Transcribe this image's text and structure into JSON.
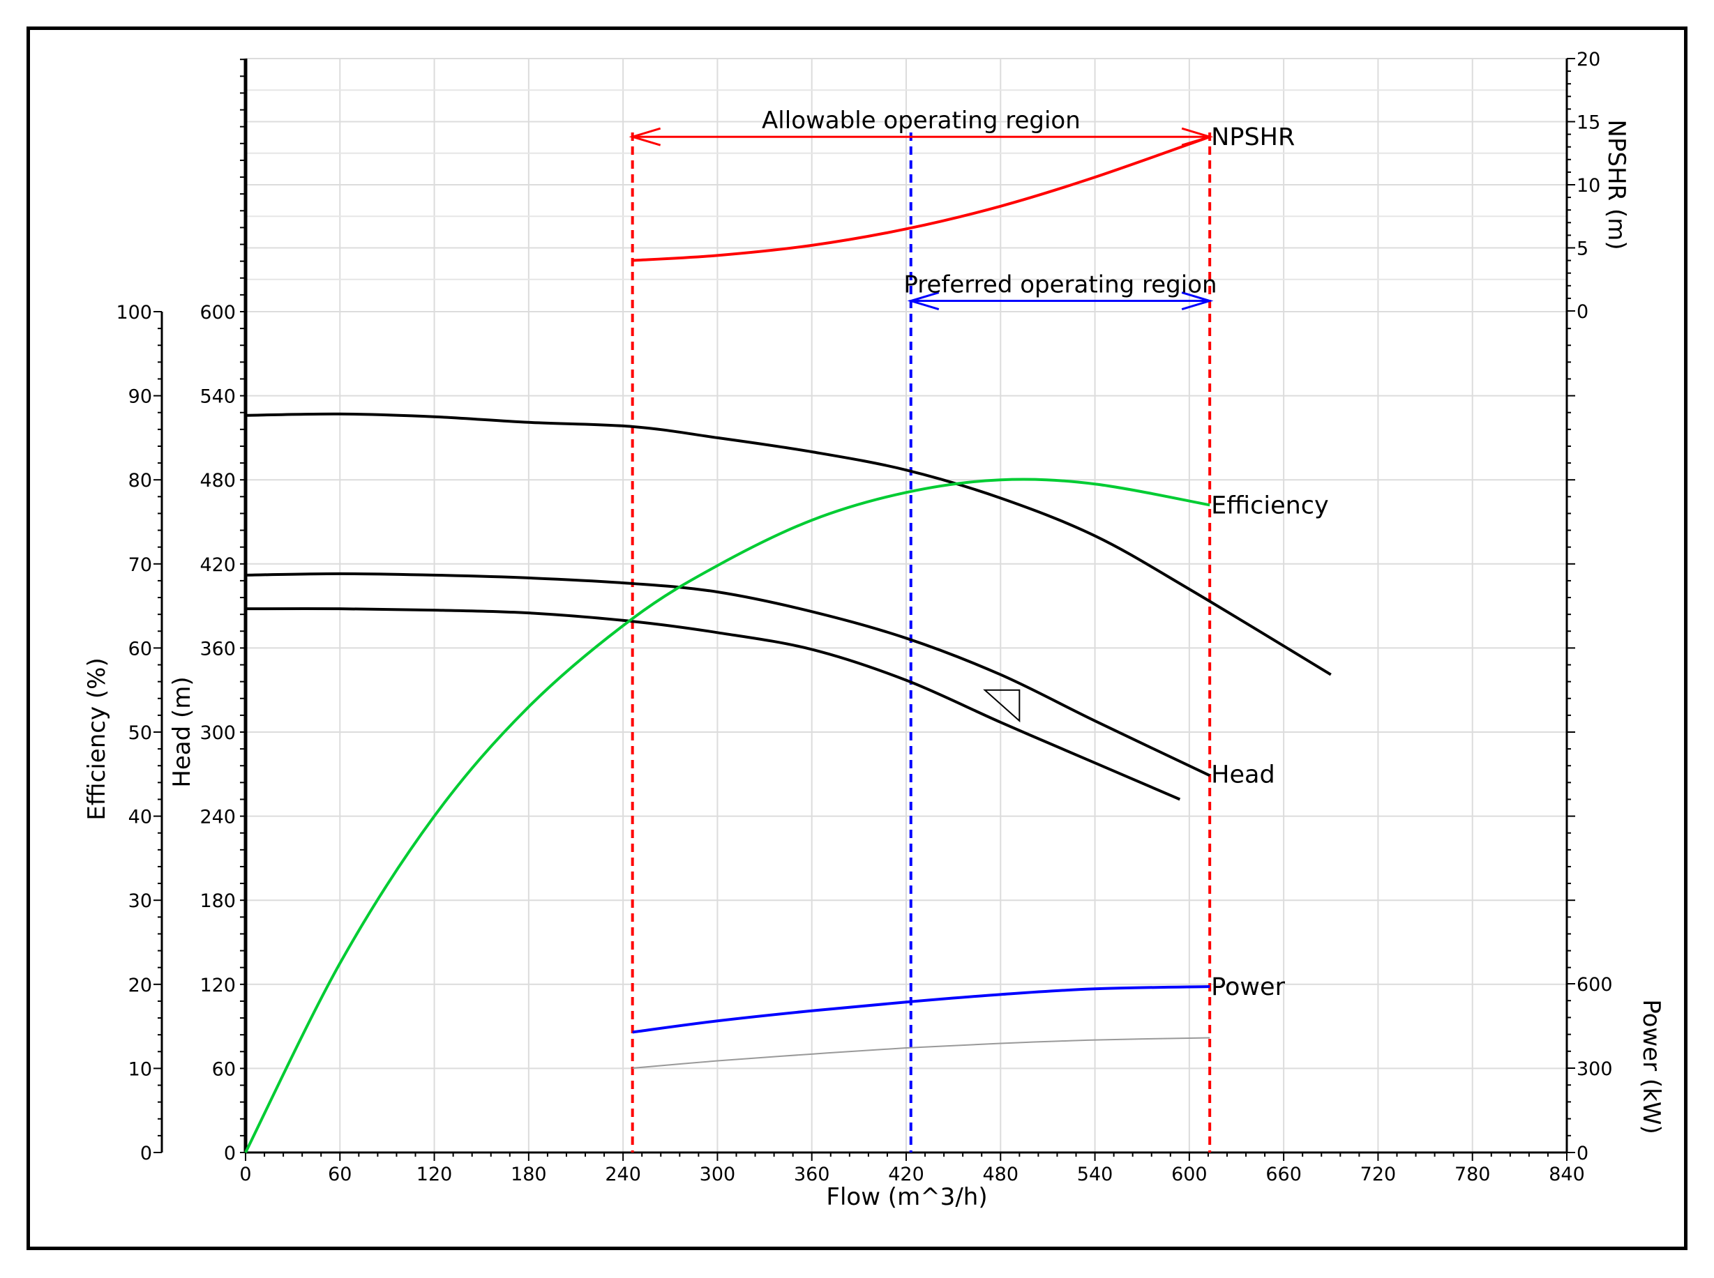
{
  "chart_data": {
    "type": "line",
    "xlabel": "Flow (m^3/h)",
    "xlim": [
      0,
      840
    ],
    "xticks": [
      0,
      60,
      120,
      180,
      240,
      300,
      360,
      420,
      480,
      540,
      600,
      660,
      720,
      780,
      840
    ],
    "axes": {
      "efficiency": {
        "label": "Efficiency (%)",
        "lim": [
          0,
          100
        ],
        "ticks": [
          0,
          10,
          20,
          30,
          40,
          50,
          60,
          70,
          80,
          90,
          100
        ]
      },
      "head": {
        "label": "Head (m)",
        "lim": [
          0,
          600
        ],
        "ticks": [
          0,
          60,
          120,
          180,
          240,
          300,
          360,
          420,
          480,
          540,
          600
        ]
      },
      "npshr": {
        "label": "NPSHR (m)",
        "lim": [
          0,
          20
        ],
        "ticks": [
          0,
          5,
          10,
          15,
          20
        ]
      },
      "power": {
        "label": "Power (kW)",
        "lim": [
          0,
          600
        ],
        "ticks": [
          0,
          300,
          600
        ]
      }
    },
    "grid": true,
    "series": [
      {
        "name": "Head",
        "axis": "head",
        "color": "#000000",
        "x": [
          0,
          60,
          120,
          180,
          246,
          300,
          360,
          420,
          480,
          540,
          600,
          690
        ],
        "y": [
          526,
          527,
          525,
          521,
          518,
          510,
          500,
          487,
          467,
          440,
          402,
          341
        ]
      },
      {
        "name": "",
        "axis": "head",
        "color": "#000000",
        "x": [
          0,
          60,
          120,
          180,
          246,
          300,
          360,
          420,
          480,
          540,
          613
        ],
        "y": [
          412,
          413,
          412,
          410,
          406,
          400,
          386,
          367,
          341,
          308,
          269
        ]
      },
      {
        "name": "",
        "axis": "head",
        "color": "#000000",
        "x": [
          0,
          60,
          120,
          180,
          246,
          300,
          360,
          420,
          480,
          540,
          594
        ],
        "y": [
          388,
          388,
          387,
          385,
          379,
          371,
          359,
          337,
          307,
          278,
          252
        ]
      },
      {
        "name": "Efficiency",
        "axis": "efficiency",
        "color": "#00cc33",
        "x": [
          0,
          60,
          120,
          180,
          246,
          300,
          360,
          420,
          480,
          540,
          613
        ],
        "y": [
          0,
          22.5,
          40,
          53,
          63.5,
          69.8,
          75.2,
          78.5,
          80,
          79.5,
          77
        ]
      },
      {
        "name": "NPSHR",
        "axis": "npshr",
        "color": "#ff0000",
        "x": [
          246,
          300,
          360,
          420,
          480,
          540,
          613
        ],
        "y": [
          4,
          4.4,
          5.2,
          6.5,
          8.3,
          10.6,
          13.8
        ]
      },
      {
        "name": "Power",
        "axis": "power",
        "color": "#0000ff",
        "x": [
          246,
          300,
          360,
          420,
          480,
          540,
          613
        ],
        "y": [
          428,
          468,
          504,
          535,
          562,
          582,
          590
        ]
      },
      {
        "name": "",
        "axis": "power",
        "color": "#999999",
        "x": [
          246,
          300,
          360,
          420,
          480,
          540,
          613
        ],
        "y": [
          300,
          326,
          350,
          372,
          388,
          400,
          408
        ]
      }
    ],
    "annotations": {
      "allowable": {
        "label": "Allowable operating region",
        "x_from": 246,
        "x_to": 613,
        "npshr_level": 13.8,
        "color": "#ff0000"
      },
      "preferred": {
        "label": "Preferred operating region",
        "x_from": 423,
        "x_to": 613,
        "npshr_level": 0.8,
        "color": "#0000ff"
      },
      "vlines": [
        {
          "x": 246,
          "color": "#ff0000"
        },
        {
          "x": 423,
          "color": "#0000ff"
        },
        {
          "x": 613,
          "color": "#ff0000"
        }
      ],
      "triangle_marker": {
        "x": [
          470,
          492,
          492
        ],
        "head": [
          330,
          330,
          308
        ]
      }
    }
  }
}
